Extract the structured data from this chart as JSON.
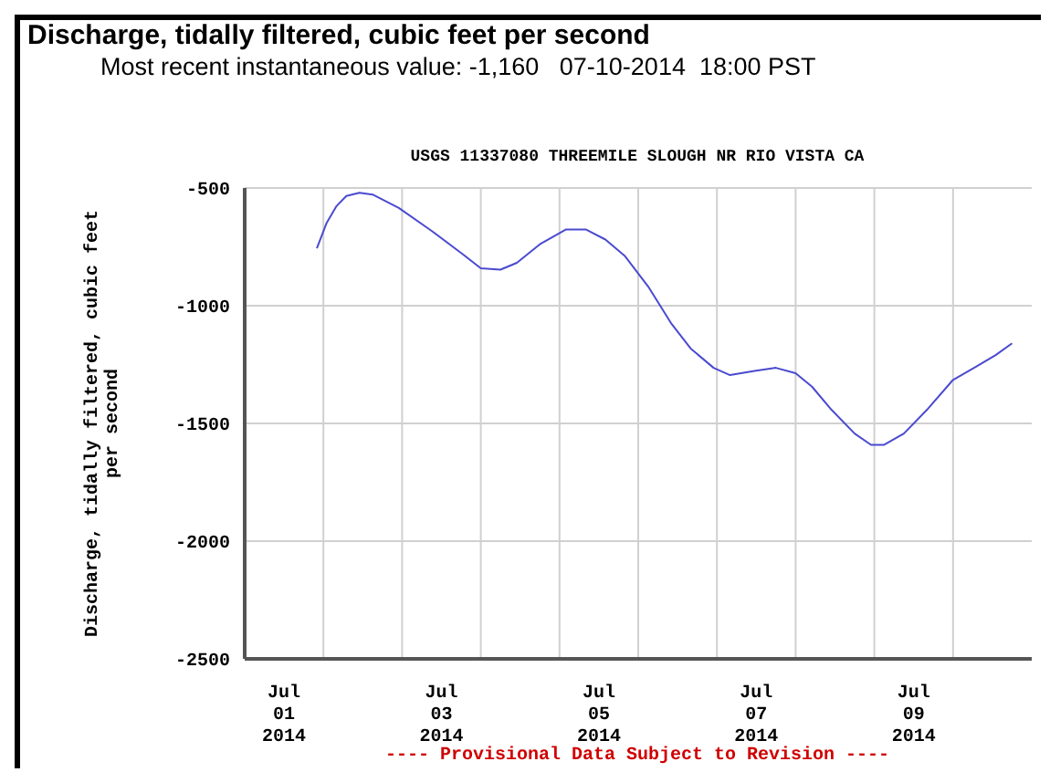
{
  "chart_data": {
    "type": "line",
    "title": "Discharge, tidally filtered, cubic feet per second",
    "subtitle": "Most recent instantaneous value: -1,160   07-10-2014  18:00 PST",
    "annotations": [
      "USGS 11337080 THREEMILE SLOUGH NR RIO VISTA CA",
      "---- Provisional Data Subject to Revision ----"
    ],
    "ylabel": "Discharge, tidally filtered, cubic feet\nper second",
    "x": [
      "2014-07-01T22:00",
      "2014-07-02T01:00",
      "2014-07-02T04:00",
      "2014-07-02T07:00",
      "2014-07-02T11:00",
      "2014-07-02T15:00",
      "2014-07-02T23:00",
      "2014-07-03T09:00",
      "2014-07-03T18:00",
      "2014-07-04T00:00",
      "2014-07-04T06:00",
      "2014-07-04T11:00",
      "2014-07-04T18:00",
      "2014-07-05T02:00",
      "2014-07-05T08:00",
      "2014-07-05T14:00",
      "2014-07-05T20:00",
      "2014-07-06T03:00",
      "2014-07-06T10:00",
      "2014-07-06T16:00",
      "2014-07-06T23:00",
      "2014-07-07T04:00",
      "2014-07-07T11:00",
      "2014-07-07T18:00",
      "2014-07-08T00:00",
      "2014-07-08T05:00",
      "2014-07-08T11:00",
      "2014-07-08T18:00",
      "2014-07-08T23:00",
      "2014-07-09T03:00",
      "2014-07-09T09:00",
      "2014-07-09T16:00",
      "2014-07-10T00:00",
      "2014-07-10T07:00",
      "2014-07-10T13:00",
      "2014-07-10T18:00"
    ],
    "series": [
      {
        "color": "#4a4ad0",
        "values": [
          -756,
          -648,
          -577,
          -534,
          -520,
          -528,
          -585,
          -682,
          -776,
          -841,
          -847,
          -818,
          -739,
          -676,
          -676,
          -719,
          -790,
          -918,
          -1074,
          -1182,
          -1264,
          -1295,
          -1278,
          -1264,
          -1287,
          -1344,
          -1443,
          -1543,
          -1591,
          -1591,
          -1543,
          -1443,
          -1315,
          -1259,
          -1210,
          -1160
        ]
      }
    ],
    "xlim": [
      "2014-07-01T00:00",
      "2014-07-11T00:00"
    ],
    "xticks": [
      {
        "value": "2014-07-01T12:00",
        "label": "Jul\n01\n2014"
      },
      {
        "value": "2014-07-02T00:00",
        "label": null
      },
      {
        "value": "2014-07-03T00:00",
        "label": null
      },
      {
        "value": "2014-07-03T12:00",
        "label": "Jul\n03\n2014"
      },
      {
        "value": "2014-07-04T00:00",
        "label": null
      },
      {
        "value": "2014-07-05T00:00",
        "label": null
      },
      {
        "value": "2014-07-05T12:00",
        "label": "Jul\n05\n2014"
      },
      {
        "value": "2014-07-06T00:00",
        "label": null
      },
      {
        "value": "2014-07-07T00:00",
        "label": null
      },
      {
        "value": "2014-07-07T12:00",
        "label": "Jul\n07\n2014"
      },
      {
        "value": "2014-07-08T00:00",
        "label": null
      },
      {
        "value": "2014-07-09T00:00",
        "label": null
      },
      {
        "value": "2014-07-09T12:00",
        "label": "Jul\n09\n2014"
      },
      {
        "value": "2014-07-10T00:00",
        "label": null
      }
    ],
    "ylim": [
      -2500,
      -500
    ],
    "yticks": [
      -2500,
      -2000,
      -1500,
      -1000,
      -500
    ],
    "grid": true,
    "legend": false,
    "marker": "none",
    "line_style": "solid"
  }
}
